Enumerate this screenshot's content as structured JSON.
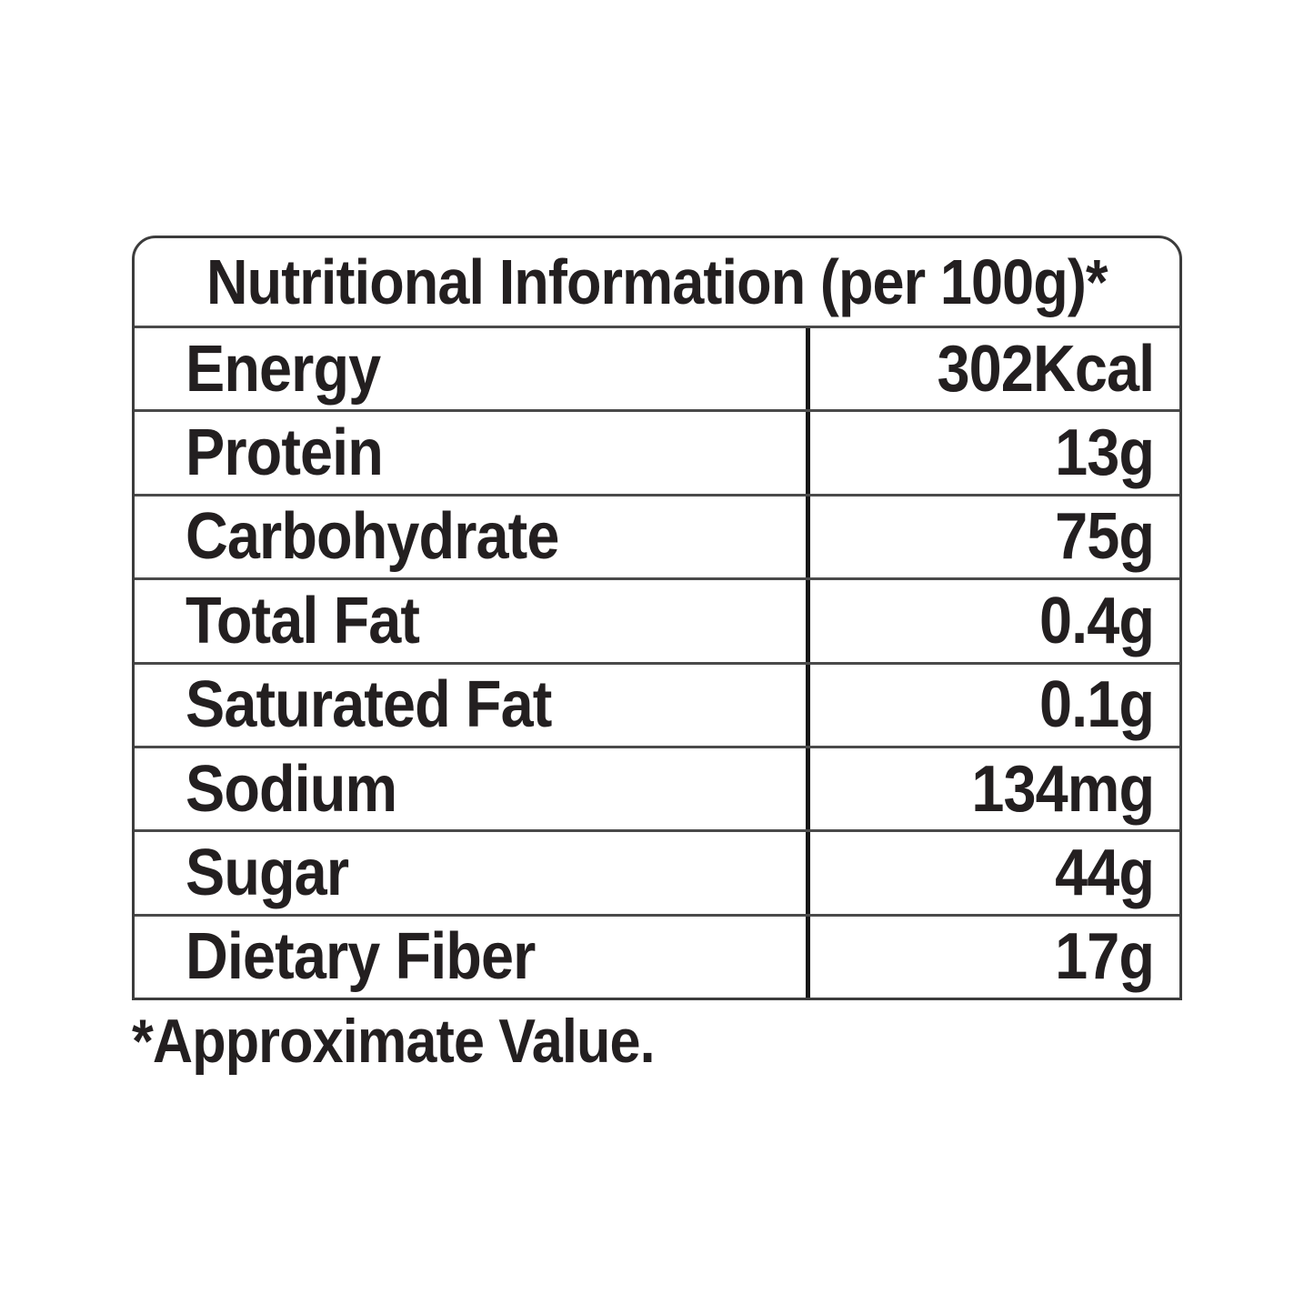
{
  "table": {
    "title": "Nutritional Information (per 100g)*",
    "rows": [
      {
        "label": "Energy",
        "value": "302Kcal"
      },
      {
        "label": "Protein",
        "value": "13g"
      },
      {
        "label": "Carbohydrate",
        "value": "75g"
      },
      {
        "label": "Total Fat",
        "value": "0.4g"
      },
      {
        "label": "Saturated Fat",
        "value": "0.1g"
      },
      {
        "label": "Sodium",
        "value": "134mg"
      },
      {
        "label": "Sugar",
        "value": "44g"
      },
      {
        "label": "Dietary Fiber",
        "value": "17g"
      }
    ],
    "footnote": "*Approximate Value."
  },
  "colors": {
    "text": "#231f20",
    "outer_border": "#3c3c3c",
    "row_divider": "#4a4a4a",
    "column_divider": "#161616",
    "background": "#ffffff"
  }
}
